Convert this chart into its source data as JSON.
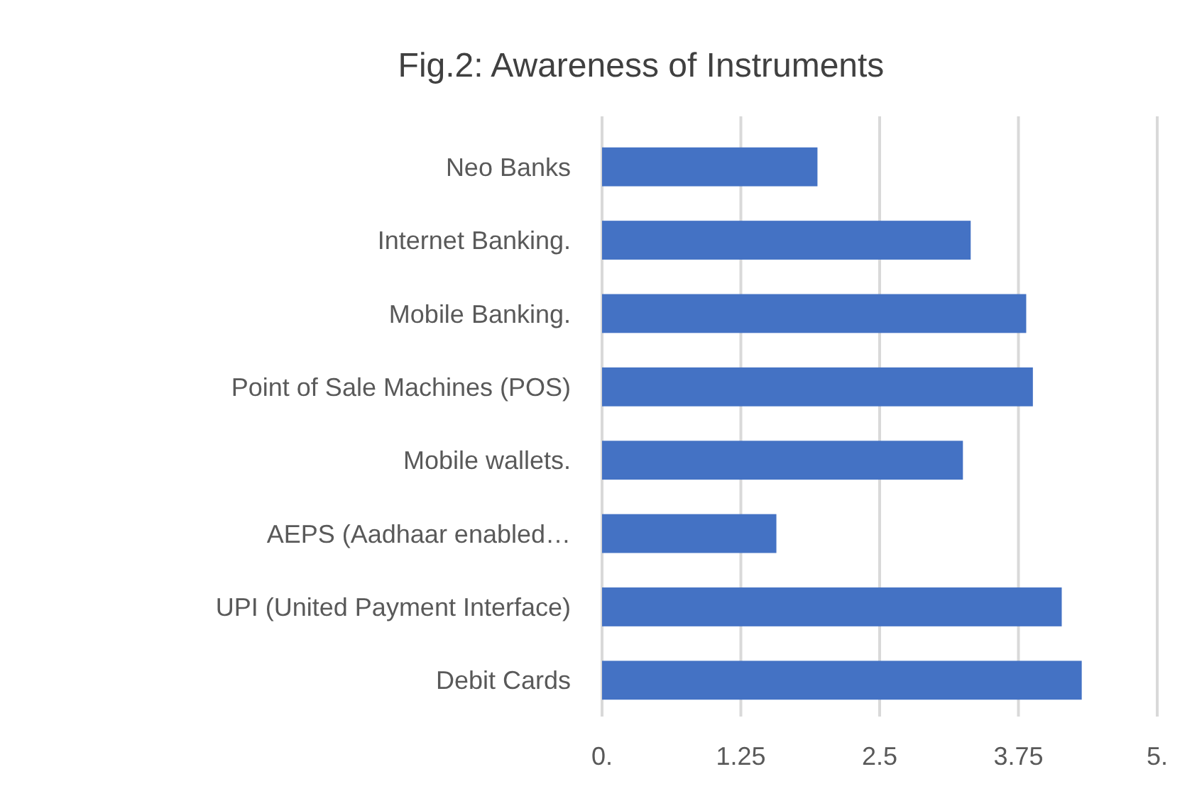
{
  "chart_data": {
    "type": "bar",
    "orientation": "horizontal",
    "title": "Fig.2: Awareness of Instruments",
    "categories": [
      "Neo Banks",
      "Internet Banking.",
      "Mobile Banking.",
      "Point of Sale Machines (POS)",
      "Mobile wallets.",
      "AEPS (Aadhaar enabled…",
      "UPI (United Payment Interface)",
      "Debit Cards"
    ],
    "values": [
      1.94,
      3.32,
      3.82,
      3.88,
      3.25,
      1.57,
      4.14,
      4.32
    ],
    "color": "#4472c4",
    "xlim": [
      0,
      5
    ],
    "xticks": [
      {
        "value": 0,
        "label": "0."
      },
      1.25,
      2.5,
      3.75,
      {
        "value": 5,
        "label": "5."
      }
    ],
    "grid": "x"
  }
}
